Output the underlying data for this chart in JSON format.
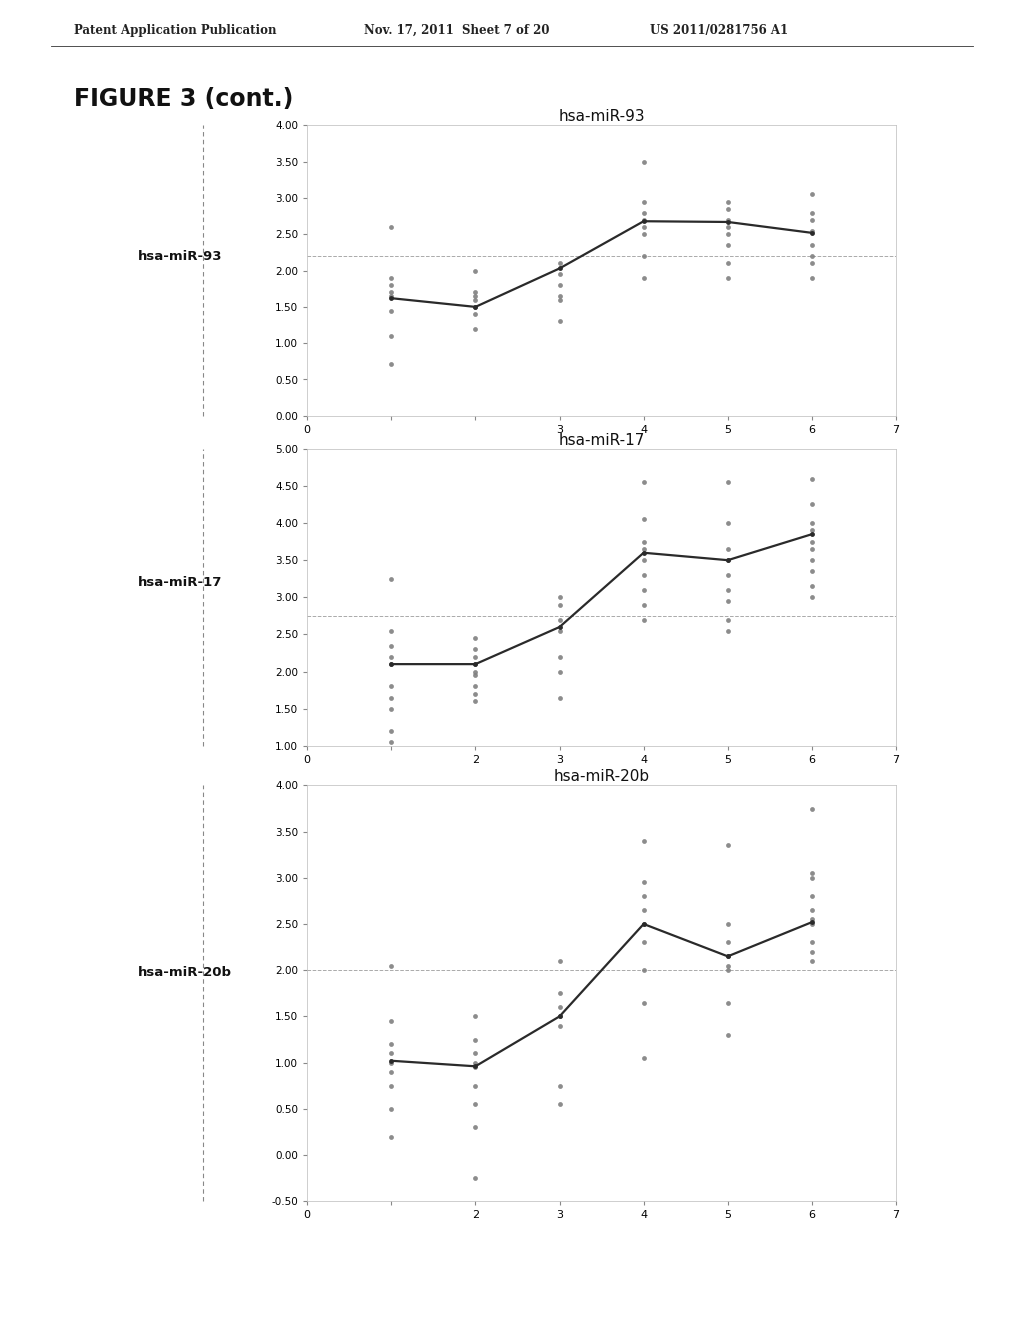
{
  "background_color": "#ffffff",
  "page_title": "Patent Application Publication",
  "page_info": "Nov. 17, 2011  Sheet 7 of 20",
  "page_info2": "US 2011/0281756 A1",
  "figure_title": "FIGURE 3 (cont.)",
  "charts": [
    {
      "label": "hsa-miR-93",
      "title": "hsa-miR-93",
      "xlim": [
        0,
        7
      ],
      "ylim": [
        0.0,
        4.0
      ],
      "yticks": [
        0.0,
        0.5,
        1.0,
        1.5,
        2.0,
        2.5,
        3.0,
        3.5,
        4.0
      ],
      "xticks": [
        0,
        1,
        2,
        3,
        4,
        5,
        6,
        7
      ],
      "xtick_labels": [
        "0",
        "",
        "",
        "3",
        "4",
        "5",
        "6",
        "7"
      ],
      "hline": 2.2,
      "line_x": [
        1,
        2,
        3,
        4,
        5,
        6
      ],
      "line_y": [
        1.62,
        1.5,
        2.03,
        2.68,
        2.67,
        2.52
      ],
      "scatter_x": [
        1,
        1,
        1,
        1,
        1,
        1,
        1,
        1,
        2,
        2,
        2,
        2,
        2,
        2,
        2,
        3,
        3,
        3,
        3,
        3,
        3,
        4,
        4,
        4,
        4,
        4,
        4,
        4,
        4,
        5,
        5,
        5,
        5,
        5,
        5,
        5,
        5,
        6,
        6,
        6,
        6,
        6,
        6,
        6,
        6
      ],
      "scatter_y": [
        0.72,
        1.1,
        1.45,
        1.65,
        1.7,
        1.8,
        1.9,
        2.6,
        1.2,
        1.4,
        1.5,
        1.6,
        1.65,
        1.7,
        2.0,
        1.3,
        1.6,
        1.65,
        1.8,
        1.95,
        2.1,
        1.9,
        2.2,
        2.5,
        2.6,
        2.7,
        2.8,
        2.95,
        3.5,
        1.9,
        2.1,
        2.35,
        2.5,
        2.6,
        2.7,
        2.85,
        2.95,
        1.9,
        2.1,
        2.2,
        2.35,
        2.55,
        2.7,
        2.8,
        3.05
      ]
    },
    {
      "label": "hsa-miR-17",
      "title": "hsa-miR-17",
      "xlim": [
        0,
        7
      ],
      "ylim": [
        1.0,
        5.0
      ],
      "yticks": [
        1.0,
        1.5,
        2.0,
        2.5,
        3.0,
        3.5,
        4.0,
        4.5,
        5.0
      ],
      "xticks": [
        0,
        1,
        2,
        3,
        4,
        5,
        6,
        7
      ],
      "xtick_labels": [
        "0",
        "",
        "2",
        "3",
        "4",
        "5",
        "6",
        "7"
      ],
      "hline": 2.75,
      "line_x": [
        1,
        2,
        3,
        4,
        5,
        6
      ],
      "line_y": [
        2.1,
        2.1,
        2.6,
        3.6,
        3.5,
        3.85
      ],
      "scatter_x": [
        1,
        1,
        1,
        1,
        1,
        1,
        1,
        1,
        1,
        1,
        2,
        2,
        2,
        2,
        2,
        2,
        2,
        2,
        2,
        3,
        3,
        3,
        3,
        3,
        3,
        3,
        4,
        4,
        4,
        4,
        4,
        4,
        4,
        4,
        4,
        5,
        5,
        5,
        5,
        5,
        5,
        5,
        5,
        5,
        6,
        6,
        6,
        6,
        6,
        6,
        6,
        6,
        6,
        6
      ],
      "scatter_y": [
        1.05,
        1.2,
        1.5,
        1.65,
        1.8,
        2.1,
        2.2,
        2.35,
        2.55,
        3.25,
        1.6,
        1.7,
        1.8,
        1.95,
        2.0,
        2.1,
        2.2,
        2.3,
        2.45,
        1.65,
        2.0,
        2.2,
        2.55,
        2.7,
        2.9,
        3.0,
        2.7,
        2.9,
        3.1,
        3.3,
        3.5,
        3.65,
        3.75,
        4.05,
        4.55,
        2.55,
        2.7,
        2.95,
        3.1,
        3.3,
        3.5,
        3.65,
        4.0,
        4.55,
        3.0,
        3.15,
        3.35,
        3.5,
        3.65,
        3.75,
        3.9,
        4.0,
        4.25,
        4.6
      ]
    },
    {
      "label": "hsa-miR-20b",
      "title": "hsa-miR-20b",
      "xlim": [
        0,
        7
      ],
      "ylim": [
        -0.5,
        4.0
      ],
      "yticks": [
        -0.5,
        0.0,
        0.5,
        1.0,
        1.5,
        2.0,
        2.5,
        3.0,
        3.5,
        4.0
      ],
      "xticks": [
        0,
        1,
        2,
        3,
        4,
        5,
        6,
        7
      ],
      "xtick_labels": [
        "0",
        "",
        "2",
        "3",
        "4",
        "5",
        "6",
        "7"
      ],
      "hline": 2.0,
      "line_x": [
        1,
        2,
        3,
        4,
        5,
        6
      ],
      "line_y": [
        1.02,
        0.96,
        1.5,
        2.5,
        2.15,
        2.52
      ],
      "scatter_x": [
        1,
        1,
        1,
        1,
        1,
        1,
        1,
        1,
        1,
        2,
        2,
        2,
        2,
        2,
        2,
        2,
        2,
        2,
        3,
        3,
        3,
        3,
        3,
        3,
        3,
        4,
        4,
        4,
        4,
        4,
        4,
        4,
        4,
        4,
        5,
        5,
        5,
        5,
        5,
        5,
        5,
        5,
        5,
        6,
        6,
        6,
        6,
        6,
        6,
        6,
        6,
        6,
        6
      ],
      "scatter_y": [
        0.2,
        0.5,
        0.75,
        0.9,
        1.0,
        1.1,
        1.2,
        1.45,
        2.05,
        -0.25,
        0.3,
        0.55,
        0.75,
        0.95,
        1.0,
        1.1,
        1.25,
        1.5,
        0.55,
        0.75,
        1.4,
        1.5,
        1.6,
        1.75,
        2.1,
        1.05,
        1.65,
        2.0,
        2.3,
        2.5,
        2.65,
        2.8,
        2.95,
        3.4,
        1.3,
        1.65,
        2.0,
        2.15,
        2.3,
        2.5,
        3.35,
        2.05,
        2.15,
        2.1,
        2.3,
        2.5,
        2.55,
        2.65,
        2.8,
        3.05,
        3.75,
        3.0,
        2.2
      ]
    }
  ]
}
